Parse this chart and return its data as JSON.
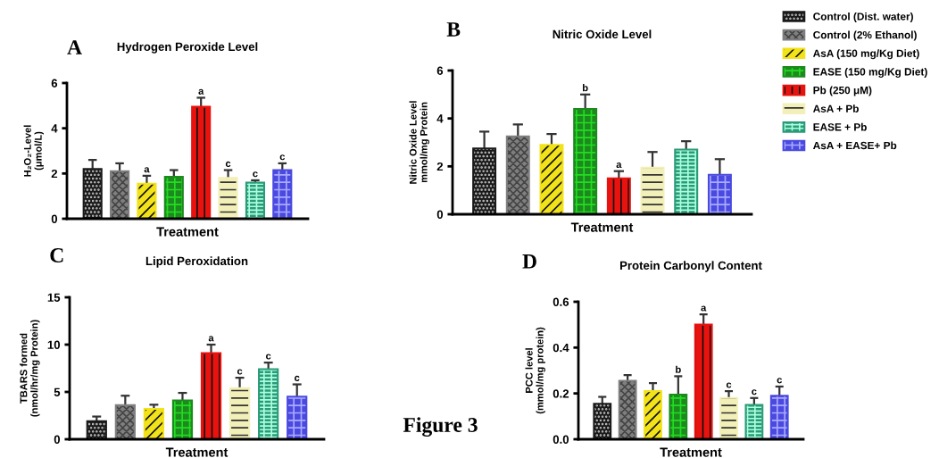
{
  "chart_data": [
    {
      "type": "bar",
      "title": "Hydrogen Peroxide Level",
      "xlabel": "Treatment",
      "ylabel": "H₂O₂-Level\n(μmol/L)",
      "annotations": [
        "A"
      ],
      "categories": [
        null
      ],
      "ylim": [
        0,
        6
      ],
      "yticks": [
        0,
        2,
        4,
        6
      ],
      "grid": false,
      "legend": "top right",
      "series": [
        {
          "name": "Control (Dist. water)",
          "color": "#1a1a1a",
          "values": [
            2.2
          ],
          "errors": [
            [
              2.2,
              2.6
            ]
          ],
          "value_labels": [
            null
          ]
        },
        {
          "name": "Control (2% Ethanol)",
          "color": "#7f7f7f",
          "values": [
            2.1
          ],
          "errors": [
            [
              2.1,
              2.45
            ]
          ],
          "value_labels": [
            null
          ]
        },
        {
          "name": "AsA (150 mg/Kg Diet)",
          "color": "#f2e21a",
          "values": [
            1.55
          ],
          "errors": [
            [
              1.55,
              1.9
            ]
          ],
          "value_labels": [
            "a"
          ]
        },
        {
          "name": "EASE (150 mg/Kg Diet)",
          "color": "#1c8a1c",
          "values": [
            1.85
          ],
          "errors": [
            [
              1.85,
              2.15
            ]
          ],
          "value_labels": [
            null
          ]
        },
        {
          "name": "Pb (250 μM)",
          "color": "#e8120f",
          "values": [
            4.95
          ],
          "errors": [
            [
              4.95,
              5.35
            ]
          ],
          "value_labels": [
            "a"
          ]
        },
        {
          "name": "AsA + Pb",
          "color": "#f2f0b8",
          "values": [
            1.8
          ],
          "errors": [
            [
              1.8,
              2.15
            ]
          ],
          "value_labels": [
            "c"
          ]
        },
        {
          "name": "EASE + Pb",
          "color": "#2a9a78",
          "values": [
            1.6
          ],
          "errors": [
            [
              1.6,
              1.7
            ]
          ],
          "value_labels": [
            "c"
          ]
        },
        {
          "name": "AsA + EASE+ Pb",
          "color": "#4a4ae0",
          "values": [
            2.15
          ],
          "errors": [
            [
              2.15,
              2.45
            ]
          ],
          "value_labels": [
            "c"
          ]
        }
      ]
    },
    {
      "type": "bar",
      "title": "Nitric Oxide Level",
      "xlabel": "Treatment",
      "ylabel": "Nitric Oxide Level\nmmol/mg Protein",
      "annotations": [
        "B"
      ],
      "categories": [
        null
      ],
      "ylim": [
        0,
        6
      ],
      "yticks": [
        0,
        2,
        4,
        6
      ],
      "grid": false,
      "series": [
        {
          "color": "#1a1a1a",
          "values": [
            2.75
          ],
          "errors": [
            [
              2.75,
              3.45
            ]
          ],
          "value_labels": [
            null
          ]
        },
        {
          "color": "#7f7f7f",
          "values": [
            3.25
          ],
          "errors": [
            [
              3.25,
              3.75
            ]
          ],
          "value_labels": [
            null
          ]
        },
        {
          "color": "#f2e21a",
          "values": [
            2.9
          ],
          "errors": [
            [
              2.9,
              3.35
            ]
          ],
          "value_labels": [
            null
          ]
        },
        {
          "color": "#1c8a1c",
          "values": [
            4.4
          ],
          "errors": [
            [
              4.4,
              5.0
            ]
          ],
          "value_labels": [
            "b"
          ]
        },
        {
          "color": "#e8120f",
          "values": [
            1.5
          ],
          "errors": [
            [
              1.5,
              1.8
            ]
          ],
          "value_labels": [
            "a"
          ]
        },
        {
          "color": "#f2f0b8",
          "values": [
            1.95
          ],
          "errors": [
            [
              1.95,
              2.6
            ]
          ],
          "value_labels": [
            null
          ]
        },
        {
          "color": "#2a9a78",
          "values": [
            2.7
          ],
          "errors": [
            [
              2.7,
              3.05
            ]
          ],
          "value_labels": [
            null
          ]
        },
        {
          "color": "#4a4ae0",
          "values": [
            1.65
          ],
          "errors": [
            [
              1.65,
              2.3
            ]
          ],
          "value_labels": [
            null
          ]
        }
      ]
    },
    {
      "type": "bar",
      "title": "Lipid Peroxidation",
      "xlabel": "Treatment",
      "ylabel": "TBARS formed\n(nmol/hr/mg Protein)",
      "annotations": [
        "C"
      ],
      "categories": [
        null
      ],
      "ylim": [
        0,
        15
      ],
      "yticks": [
        0,
        5,
        10,
        15
      ],
      "grid": false,
      "series": [
        {
          "color": "#1a1a1a",
          "values": [
            1.9
          ],
          "errors": [
            [
              1.9,
              2.4
            ]
          ],
          "value_labels": [
            null
          ]
        },
        {
          "color": "#7f7f7f",
          "values": [
            3.6
          ],
          "errors": [
            [
              3.6,
              4.6
            ]
          ],
          "value_labels": [
            null
          ]
        },
        {
          "color": "#f2e21a",
          "values": [
            3.2
          ],
          "errors": [
            [
              3.2,
              3.65
            ]
          ],
          "value_labels": [
            null
          ]
        },
        {
          "color": "#1c8a1c",
          "values": [
            4.1
          ],
          "errors": [
            [
              4.1,
              4.9
            ]
          ],
          "value_labels": [
            null
          ]
        },
        {
          "color": "#e8120f",
          "values": [
            9.1
          ],
          "errors": [
            [
              9.1,
              10.0
            ]
          ],
          "value_labels": [
            "a"
          ]
        },
        {
          "color": "#f2f0b8",
          "values": [
            5.4
          ],
          "errors": [
            [
              5.4,
              6.5
            ]
          ],
          "value_labels": [
            "c"
          ]
        },
        {
          "color": "#2a9a78",
          "values": [
            7.4
          ],
          "errors": [
            [
              7.4,
              8.1
            ]
          ],
          "value_labels": [
            "c"
          ]
        },
        {
          "color": "#4a4ae0",
          "values": [
            4.5
          ],
          "errors": [
            [
              4.5,
              5.8
            ]
          ],
          "value_labels": [
            "c"
          ]
        }
      ]
    },
    {
      "type": "bar",
      "title": "Protein Carbonyl Content",
      "xlabel": "Treatment",
      "ylabel": "PCC level\n(mmol/mg protein)",
      "annotations": [
        "D",
        "Figure 3"
      ],
      "categories": [
        null
      ],
      "ylim": [
        0,
        0.6
      ],
      "yticks": [
        {
          "value": 0,
          "label": "0.0"
        },
        {
          "value": 0.2,
          "label": "0.2"
        },
        {
          "value": 0.4,
          "label": "0.4"
        },
        {
          "value": 0.6,
          "label": "0.6"
        }
      ],
      "grid": false,
      "series": [
        {
          "color": "#1a1a1a",
          "values": [
            0.155
          ],
          "errors": [
            [
              0.155,
              0.185
            ]
          ],
          "value_labels": [
            null
          ]
        },
        {
          "color": "#7f7f7f",
          "values": [
            0.255
          ],
          "errors": [
            [
              0.255,
              0.28
            ]
          ],
          "value_labels": [
            null
          ]
        },
        {
          "color": "#f2e21a",
          "values": [
            0.21
          ],
          "errors": [
            [
              0.21,
              0.245
            ]
          ],
          "value_labels": [
            null
          ]
        },
        {
          "color": "#1c8a1c",
          "values": [
            0.195
          ],
          "errors": [
            [
              0.195,
              0.275
            ]
          ],
          "value_labels": [
            "b"
          ]
        },
        {
          "color": "#e8120f",
          "values": [
            0.5
          ],
          "errors": [
            [
              0.5,
              0.545
            ]
          ],
          "value_labels": [
            "a"
          ]
        },
        {
          "color": "#f2f0b8",
          "values": [
            0.18
          ],
          "errors": [
            [
              0.18,
              0.21
            ]
          ],
          "value_labels": [
            "c"
          ]
        },
        {
          "color": "#2a9a78",
          "values": [
            0.15
          ],
          "errors": [
            [
              0.15,
              0.18
            ]
          ],
          "value_labels": [
            "c"
          ]
        },
        {
          "color": "#4a4ae0",
          "values": [
            0.19
          ],
          "errors": [
            [
              0.19,
              0.23
            ]
          ],
          "value_labels": [
            "c"
          ]
        }
      ]
    }
  ]
}
